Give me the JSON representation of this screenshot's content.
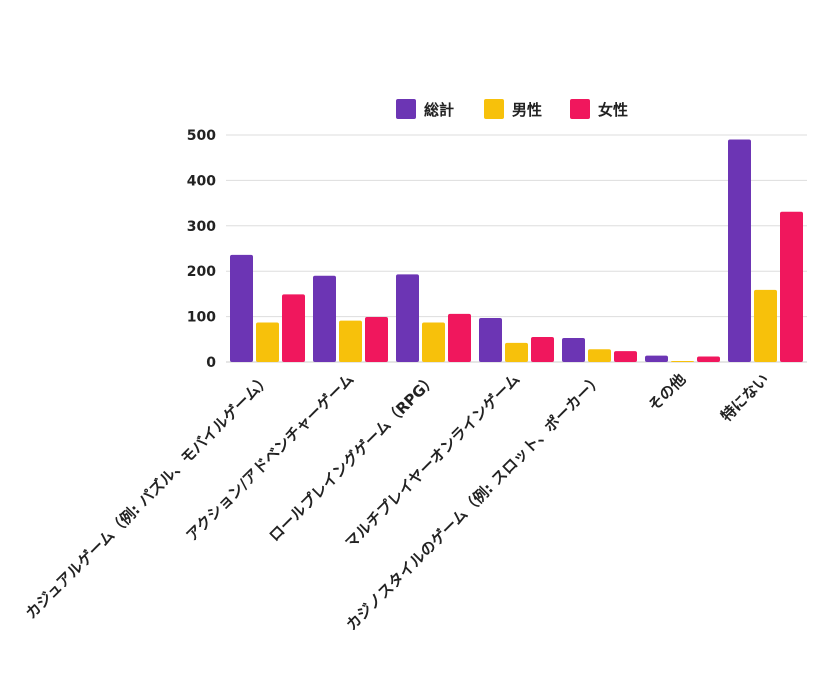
{
  "chart_data": {
    "type": "bar",
    "categories": [
      "カジュアルゲーム（例: パズル、モバイルゲーム）",
      "アクション/アドベンチャーゲーム",
      "ロールプレイングゲーム（RPG）",
      "マルチプレイヤーオンラインゲーム",
      "カジノスタイルのゲーム（例: スロット、ポーカー）",
      "その他",
      "特にない"
    ],
    "series": [
      {
        "name": "総計",
        "color": "#6c35b4",
        "values": [
          236,
          190,
          193,
          97,
          53,
          14,
          490
        ]
      },
      {
        "name": "男性",
        "color": "#f7c10b",
        "values": [
          87,
          91,
          87,
          42,
          28,
          2,
          159
        ]
      },
      {
        "name": "女性",
        "color": "#f0175d",
        "values": [
          149,
          99,
          106,
          55,
          24,
          12,
          331
        ]
      }
    ],
    "ylim": [
      0,
      500
    ],
    "yticks": [
      0,
      100,
      200,
      300,
      400,
      500
    ],
    "grid": true,
    "legend_position": "top"
  }
}
